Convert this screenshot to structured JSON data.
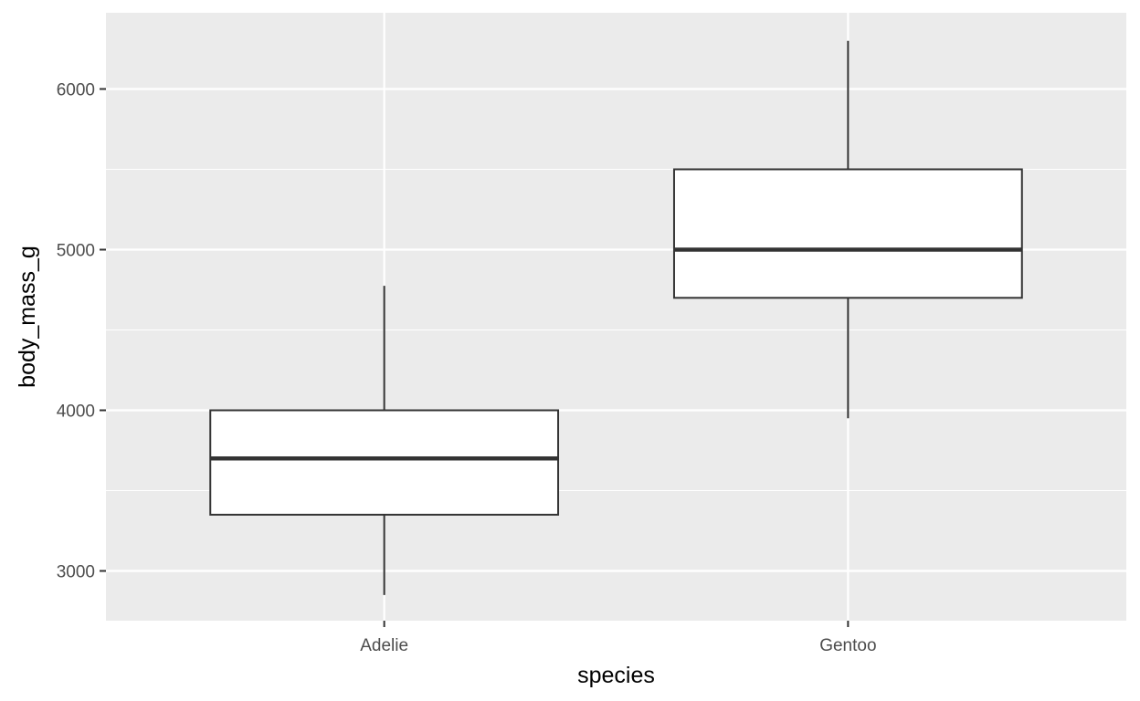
{
  "chart_data": {
    "type": "boxplot",
    "xlabel": "species",
    "ylabel": "body_mass_g",
    "categories": [
      "Adelie",
      "Gentoo"
    ],
    "ylim": [
      2700,
      6475
    ],
    "y_ticks": [
      3000,
      4000,
      5000,
      6000
    ],
    "y_tick_labels": [
      "3000",
      "4000",
      "5000",
      "6000"
    ],
    "boxes": [
      {
        "category": "Adelie",
        "whisker_low": 2850,
        "q1": 3350,
        "median": 3700,
        "q3": 4000,
        "whisker_high": 4775
      },
      {
        "category": "Gentoo",
        "whisker_low": 3950,
        "q1": 4700,
        "median": 5000,
        "q3": 5500,
        "whisker_high": 6300
      }
    ],
    "grid": true,
    "legend": "none",
    "colors": {
      "panel_background": "#ebebeb",
      "grid": "#ffffff",
      "box_fill": "#ffffff",
      "box_stroke": "#333333",
      "tick_text": "#4d4d4d",
      "title_text": "#000000"
    }
  }
}
